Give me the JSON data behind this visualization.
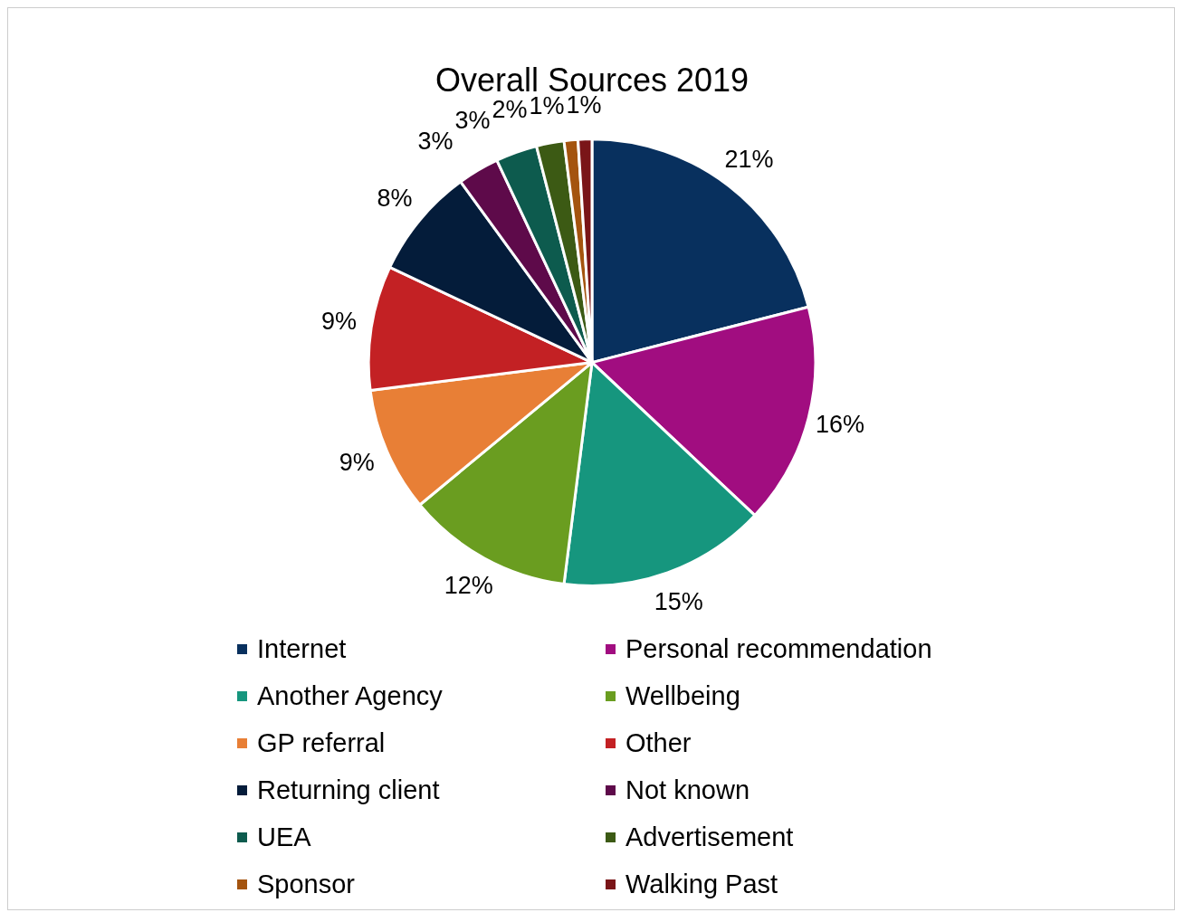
{
  "chart_data": {
    "type": "pie",
    "title": "Overall Sources 2019",
    "categories": [
      "Internet",
      "Personal recommendation",
      "Another Agency",
      "Wellbeing",
      "GP referral",
      "Other",
      "Returning client",
      "Not known",
      "UEA",
      "Advertisement",
      "Sponsor",
      "Walking Past"
    ],
    "values": [
      21,
      16,
      15,
      12,
      9,
      9,
      8,
      3,
      3,
      2,
      1,
      1
    ],
    "value_labels": [
      "21%",
      "16%",
      "15%",
      "12%",
      "9%",
      "9%",
      "8%",
      "3%",
      "3%",
      "2%",
      "1%",
      "1%"
    ],
    "colors": [
      "#08305e",
      "#a10d80",
      "#16967e",
      "#6a9d20",
      "#e87f36",
      "#c32124",
      "#041c3a",
      "#5e0a4a",
      "#0d5b4e",
      "#3c5a14",
      "#a4540f",
      "#7a1518"
    ],
    "legend": "bottom"
  }
}
